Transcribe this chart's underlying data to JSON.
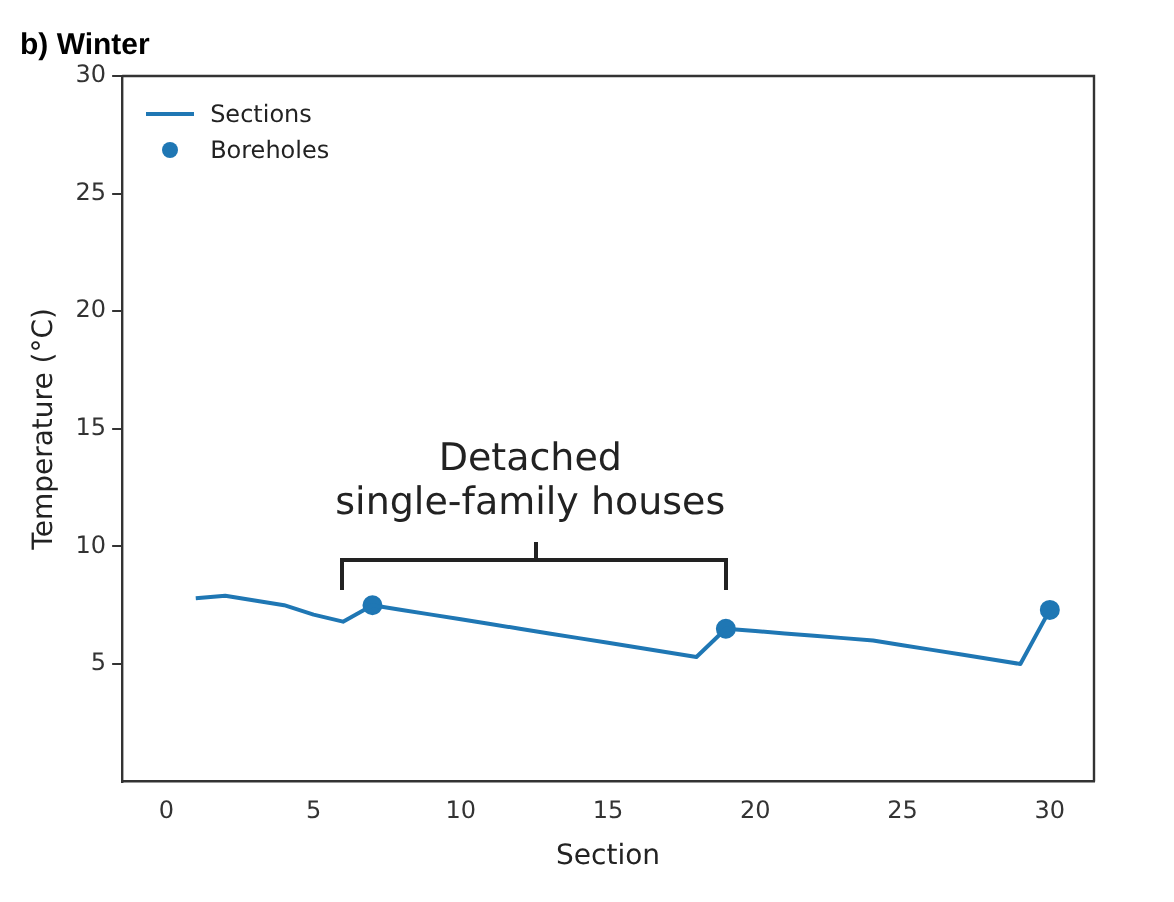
{
  "chart_data": {
    "type": "line",
    "title": "b) Winter",
    "xlabel": "Section",
    "ylabel": "Temperature (°C)",
    "x": [
      1,
      2,
      3,
      4,
      5,
      6,
      7,
      8,
      9,
      10,
      11,
      12,
      13,
      14,
      15,
      16,
      17,
      18,
      19,
      20,
      21,
      22,
      23,
      24,
      25,
      26,
      27,
      28,
      29,
      30
    ],
    "series": [
      {
        "name": "Sections",
        "color": "#1f77b4",
        "marker": "none",
        "values": [
          7.8,
          7.9,
          7.7,
          7.5,
          7.1,
          6.8,
          7.5,
          7.3,
          7.1,
          6.9,
          6.7,
          6.5,
          6.3,
          6.1,
          5.9,
          5.7,
          5.5,
          5.3,
          6.5,
          6.4,
          6.3,
          6.2,
          6.1,
          6.0,
          5.8,
          5.6,
          5.4,
          5.2,
          5.0,
          7.3
        ]
      },
      {
        "name": "Boreholes",
        "type": "scatter",
        "color": "#1f77b4",
        "marker": "circle",
        "x": [
          7,
          19,
          30
        ],
        "values": [
          7.5,
          6.5,
          7.3
        ]
      }
    ],
    "annotations": [
      "Detached single-family houses"
    ],
    "xlim": [
      -1.5,
      31.5
    ],
    "xticks": [
      0,
      5,
      10,
      15,
      20,
      25,
      30
    ],
    "ylim": [
      0,
      30
    ],
    "yticks": [
      5,
      10,
      15,
      20,
      25,
      30
    ],
    "grid": false,
    "legend": "top left"
  }
}
